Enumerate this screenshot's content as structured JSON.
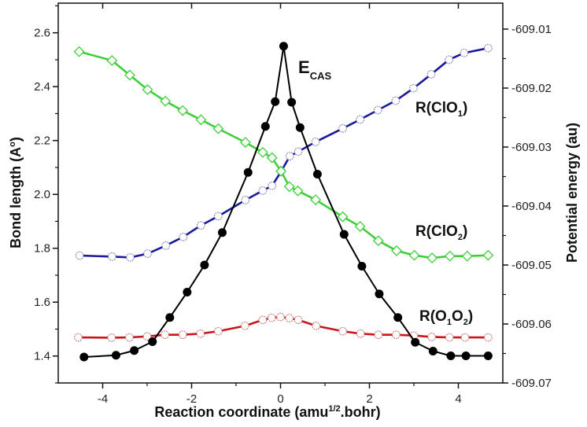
{
  "chart_data": {
    "type": "line",
    "xlabel": "Reaction coordinate (amu",
    "xlabel_sup": "1/2",
    "xlabel_tail": ".bohr)",
    "ylabel": "Bond length (A",
    "ylabel_sup": "o",
    "ylabel_tail": ")",
    "y2label": "Potential energy (au)",
    "xlim": [
      -5.0,
      5.0
    ],
    "ylim": [
      1.3,
      2.71
    ],
    "y2lim": [
      -609.07,
      -609.0056
    ],
    "xticks": [
      "-4",
      "-2",
      "0",
      "2",
      "4"
    ],
    "xtick_values": [
      -4,
      -2,
      0,
      2,
      4
    ],
    "yticks": [
      "1.4",
      "1.6",
      "1.8",
      "2.0",
      "2.2",
      "2.4",
      "2.6"
    ],
    "ytick_values": [
      1.4,
      1.6,
      1.8,
      2.0,
      2.2,
      2.4,
      2.6
    ],
    "y2ticks": [
      "-609.07",
      "-609.06",
      "-609.05",
      "-609.04",
      "-609.03",
      "-609.02",
      "-609.01"
    ],
    "y2tick_values": [
      -609.07,
      -609.06,
      -609.05,
      -609.04,
      -609.03,
      -609.02,
      -609.01
    ],
    "grid": false,
    "series": [
      {
        "name": "E",
        "name_sub": "CAS",
        "axis": "right",
        "color": "#000000",
        "marker": "filled-circle",
        "x": [
          -4.42,
          -3.7,
          -3.29,
          -2.88,
          -2.49,
          -2.1,
          -1.71,
          -1.31,
          -0.73,
          -0.34,
          -0.12,
          0.07,
          0.25,
          0.44,
          0.83,
          1.43,
          1.83,
          2.22,
          2.64,
          3.03,
          3.43,
          3.83,
          4.17,
          4.67
        ],
        "y": [
          -609.0656,
          -609.0653,
          -609.0645,
          -609.063,
          -609.0589,
          -609.0546,
          -609.05,
          -609.0445,
          -609.0343,
          -609.0265,
          -609.0223,
          -609.0129,
          -609.0224,
          -609.0267,
          -609.0346,
          -609.0448,
          -609.0502,
          -609.0549,
          -609.0589,
          -609.0631,
          -609.0646,
          -609.0654,
          -609.0654,
          -609.0654
        ]
      },
      {
        "name": "R(ClO",
        "name_sub": "1",
        "name_tail": ")",
        "axis": "left",
        "color": "#1a1a9c",
        "marker": "open-circle",
        "x": [
          -4.52,
          -3.79,
          -3.38,
          -2.99,
          -2.58,
          -2.19,
          -1.79,
          -1.4,
          -0.79,
          -0.4,
          -0.19,
          0.02,
          0.21,
          0.4,
          0.79,
          1.4,
          1.79,
          2.19,
          2.59,
          2.99,
          3.39,
          3.79,
          4.13,
          4.67
        ],
        "y": [
          1.773,
          1.769,
          1.766,
          1.78,
          1.81,
          1.842,
          1.885,
          1.919,
          1.979,
          2.014,
          2.032,
          2.087,
          2.142,
          2.159,
          2.195,
          2.245,
          2.278,
          2.313,
          2.348,
          2.394,
          2.446,
          2.5,
          2.525,
          2.543
        ]
      },
      {
        "name": "R(ClO",
        "name_sub": "2",
        "name_tail": ")",
        "axis": "left",
        "color": "#3fcf3a",
        "marker": "open-diamond",
        "x": [
          -4.53,
          -3.79,
          -3.39,
          -2.99,
          -2.59,
          -2.2,
          -1.79,
          -1.4,
          -0.79,
          -0.4,
          -0.19,
          0.01,
          0.2,
          0.39,
          0.79,
          1.4,
          1.79,
          2.2,
          2.61,
          3.01,
          3.41,
          3.81,
          4.2,
          4.67
        ],
        "y": [
          2.53,
          2.497,
          2.443,
          2.389,
          2.346,
          2.311,
          2.277,
          2.244,
          2.193,
          2.156,
          2.136,
          2.086,
          2.029,
          2.013,
          1.98,
          1.917,
          1.881,
          1.828,
          1.791,
          1.774,
          1.764,
          1.771,
          1.771,
          1.774
        ]
      },
      {
        "name": "R(O",
        "name_sub": "1",
        "name_mid": "O",
        "name_sub2": "2",
        "name_tail": ")",
        "axis": "left",
        "color": "#c8161d",
        "marker": "open-circle",
        "x": [
          -4.55,
          -3.8,
          -3.4,
          -3.0,
          -2.6,
          -2.2,
          -1.8,
          -1.4,
          -0.8,
          -0.4,
          -0.2,
          0,
          0.2,
          0.4,
          0.8,
          1.4,
          1.8,
          2.2,
          2.6,
          3.0,
          3.4,
          3.8,
          4.15,
          4.67
        ],
        "y": [
          1.469,
          1.468,
          1.469,
          1.473,
          1.479,
          1.479,
          1.483,
          1.492,
          1.512,
          1.534,
          1.542,
          1.545,
          1.541,
          1.534,
          1.512,
          1.492,
          1.483,
          1.479,
          1.479,
          1.476,
          1.471,
          1.469,
          1.469,
          1.469
        ]
      }
    ]
  }
}
